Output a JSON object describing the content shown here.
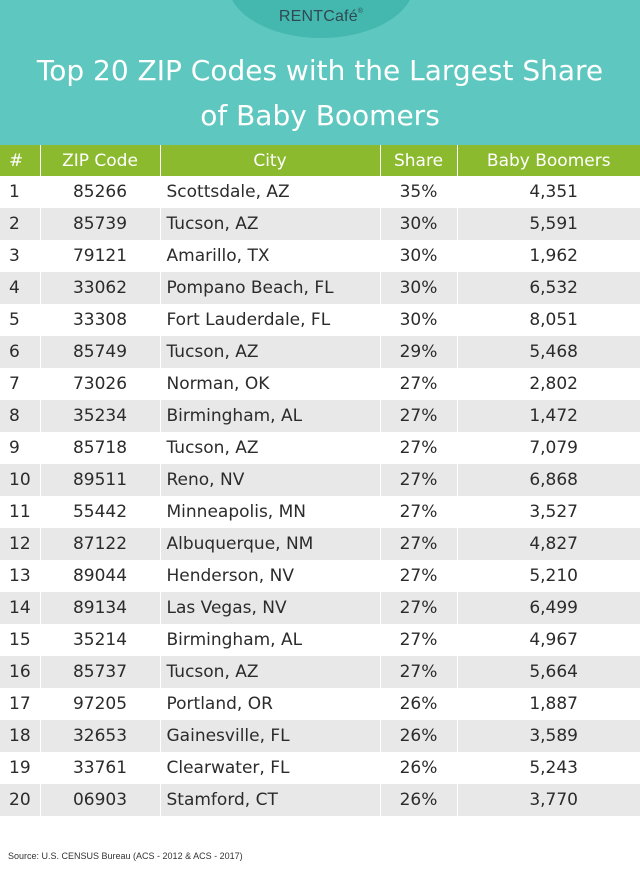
{
  "brand": {
    "logo_text": "RENTCafé",
    "logo_mark": "®"
  },
  "title": {
    "line1": "Top 20 ZIP Codes with the Largest Share",
    "line2": "of Baby Boomers"
  },
  "colors": {
    "header_bg": "#5ec7bf",
    "logo_cap": "#44b7ae",
    "table_header_bg": "#8cba2f",
    "row_alt_bg": "#e8e8e8"
  },
  "table": {
    "headers": [
      "#",
      "ZIP Code",
      "City",
      "Share",
      "Baby Boomers"
    ],
    "rows": [
      {
        "rank": "1",
        "zip": "85266",
        "city": "Scottsdale, AZ",
        "share": "35%",
        "boomers": "4,351"
      },
      {
        "rank": "2",
        "zip": "85739",
        "city": "Tucson, AZ",
        "share": "30%",
        "boomers": "5,591"
      },
      {
        "rank": "3",
        "zip": "79121",
        "city": "Amarillo, TX",
        "share": "30%",
        "boomers": "1,962"
      },
      {
        "rank": "4",
        "zip": "33062",
        "city": "Pompano Beach, FL",
        "share": "30%",
        "boomers": "6,532"
      },
      {
        "rank": "5",
        "zip": "33308",
        "city": "Fort Lauderdale, FL",
        "share": "30%",
        "boomers": "8,051"
      },
      {
        "rank": "6",
        "zip": "85749",
        "city": "Tucson, AZ",
        "share": "29%",
        "boomers": "5,468"
      },
      {
        "rank": "7",
        "zip": "73026",
        "city": "Norman, OK",
        "share": "27%",
        "boomers": "2,802"
      },
      {
        "rank": "8",
        "zip": "35234",
        "city": "Birmingham, AL",
        "share": "27%",
        "boomers": "1,472"
      },
      {
        "rank": "9",
        "zip": "85718",
        "city": "Tucson, AZ",
        "share": "27%",
        "boomers": "7,079"
      },
      {
        "rank": "10",
        "zip": "89511",
        "city": "Reno, NV",
        "share": "27%",
        "boomers": "6,868"
      },
      {
        "rank": "11",
        "zip": "55442",
        "city": "Minneapolis, MN",
        "share": "27%",
        "boomers": "3,527"
      },
      {
        "rank": "12",
        "zip": "87122",
        "city": "Albuquerque, NM",
        "share": "27%",
        "boomers": "4,827"
      },
      {
        "rank": "13",
        "zip": "89044",
        "city": "Henderson, NV",
        "share": "27%",
        "boomers": "5,210"
      },
      {
        "rank": "14",
        "zip": "89134",
        "city": "Las Vegas, NV",
        "share": "27%",
        "boomers": "6,499"
      },
      {
        "rank": "15",
        "zip": "35214",
        "city": "Birmingham, AL",
        "share": "27%",
        "boomers": "4,967"
      },
      {
        "rank": "16",
        "zip": "85737",
        "city": "Tucson, AZ",
        "share": "27%",
        "boomers": "5,664"
      },
      {
        "rank": "17",
        "zip": "97205",
        "city": "Portland, OR",
        "share": "26%",
        "boomers": "1,887"
      },
      {
        "rank": "18",
        "zip": "32653",
        "city": "Gainesville, FL",
        "share": "26%",
        "boomers": "3,589"
      },
      {
        "rank": "19",
        "zip": "33761",
        "city": "Clearwater, FL",
        "share": "26%",
        "boomers": "5,243"
      },
      {
        "rank": "20",
        "zip": "06903",
        "city": "Stamford, CT",
        "share": "26%",
        "boomers": "3,770"
      }
    ]
  },
  "source": "Source: U.S. CENSUS Bureau (ACS - 2012 & ACS - 2017)"
}
